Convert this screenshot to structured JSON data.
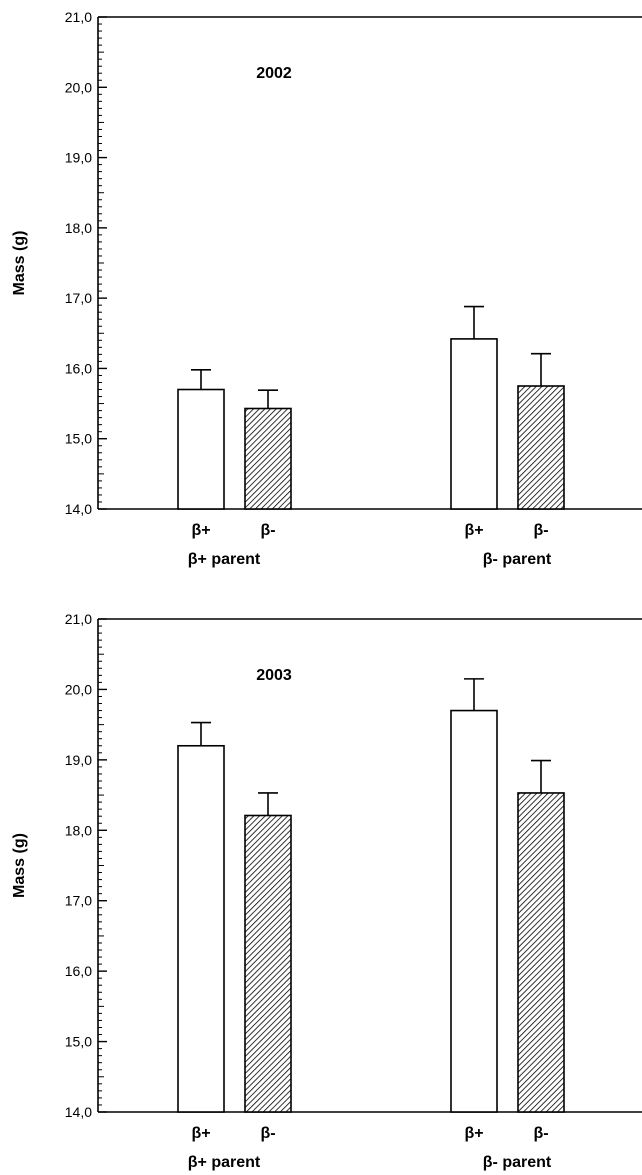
{
  "chart_data": [
    {
      "type": "bar",
      "title": "2002",
      "ylabel": "Mass (g)",
      "ylim": [
        14,
        21
      ],
      "yticks": [
        "14,0",
        "15,0",
        "16,0",
        "17,0",
        "18,0",
        "19,0",
        "20,0",
        "21,0"
      ],
      "groups": [
        {
          "label": "β+ parent",
          "bars": [
            {
              "label": "β+",
              "value": 15.7,
              "error": 0.28,
              "fill": "open"
            },
            {
              "label": "β-",
              "value": 15.43,
              "error": 0.26,
              "fill": "hatched"
            }
          ]
        },
        {
          "label": "β- parent",
          "bars": [
            {
              "label": "β+",
              "value": 16.42,
              "error": 0.46,
              "fill": "open"
            },
            {
              "label": "β-",
              "value": 15.75,
              "error": 0.46,
              "fill": "hatched"
            }
          ]
        }
      ],
      "grid": false
    },
    {
      "type": "bar",
      "title": "2003",
      "ylabel": "Mass (g)",
      "ylim": [
        14,
        21
      ],
      "yticks": [
        "14,0",
        "15,0",
        "16,0",
        "17,0",
        "18,0",
        "19,0",
        "20,0",
        "21,0"
      ],
      "groups": [
        {
          "label": "β+ parent",
          "bars": [
            {
              "label": "β+",
              "value": 19.2,
              "error": 0.33,
              "fill": "open"
            },
            {
              "label": "β-",
              "value": 18.21,
              "error": 0.32,
              "fill": "hatched"
            }
          ]
        },
        {
          "label": "β- parent",
          "bars": [
            {
              "label": "β+",
              "value": 19.7,
              "error": 0.45,
              "fill": "open"
            },
            {
              "label": "β-",
              "value": 18.53,
              "error": 0.46,
              "fill": "hatched"
            }
          ]
        }
      ],
      "grid": false
    }
  ],
  "colors": {
    "axis": "#000000",
    "open_bar": "#ffffff",
    "hatch": "#000000"
  }
}
